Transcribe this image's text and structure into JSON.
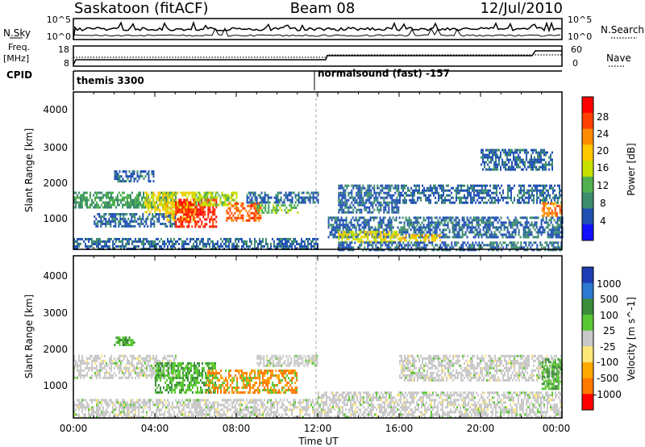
{
  "header": {
    "station": "Saskatoon (fitACF)",
    "beam": "Beam 08",
    "date": "12/Jul/2010"
  },
  "nsky_panel": {
    "left_label": "N.Sky",
    "right_label": "N.Search",
    "left_ticks": [
      "10^5",
      "10^0"
    ],
    "right_ticks": [
      "10^5",
      "10^0"
    ]
  },
  "freq_panel": {
    "left_label_1": "Freq.",
    "left_label_2": "[MHz]",
    "right_label": "Nave",
    "left_ticks": [
      "18",
      "8"
    ],
    "right_ticks": [
      "60",
      "0"
    ]
  },
  "cpid_panel": {
    "label": "CPID",
    "modes": [
      "themis 3300",
      "normalsound (fast) -157"
    ]
  },
  "chart_data": [
    {
      "type": "heatmap",
      "name": "power",
      "ylabel": "Slant Range [km]",
      "xlabel": "",
      "x_range_hours": [
        0,
        24
      ],
      "ylim": [
        180,
        4600
      ],
      "yticks": [
        "1000",
        "2000",
        "3000",
        "4000"
      ],
      "colorbar": {
        "label": "Power [dB]",
        "ticks": [
          "28",
          "24",
          "20",
          "16",
          "12",
          "8",
          "4"
        ],
        "colors": [
          "#ff0000",
          "#ff4000",
          "#ff8c00",
          "#ffc800",
          "#c8e000",
          "#50b050",
          "#3c8c6e",
          "#2050b4",
          "#1010ff"
        ]
      },
      "bands": [
        {
          "x0": 0.0,
          "x1": 5.0,
          "r0": 1350,
          "r1": 1800,
          "level": 12
        },
        {
          "x0": 1.0,
          "x1": 5.0,
          "r0": 800,
          "r1": 1200,
          "level": 8
        },
        {
          "x0": 3.5,
          "x1": 6.0,
          "r0": 1200,
          "r1": 1800,
          "level": 18
        },
        {
          "x0": 4.5,
          "x1": 6.0,
          "r0": 1000,
          "r1": 1500,
          "level": 20
        },
        {
          "x0": 5.0,
          "x1": 7.0,
          "r0": 800,
          "r1": 1600,
          "level": 28
        },
        {
          "x0": 6.0,
          "x1": 8.0,
          "r0": 1400,
          "r1": 1800,
          "level": 16
        },
        {
          "x0": 7.5,
          "x1": 9.2,
          "r0": 1000,
          "r1": 1500,
          "level": 26
        },
        {
          "x0": 9.0,
          "x1": 11.0,
          "r0": 1200,
          "r1": 1450,
          "level": 14
        },
        {
          "x0": 8.5,
          "x1": 12.0,
          "r0": 1500,
          "r1": 1800,
          "level": 8
        },
        {
          "x0": 2.0,
          "x1": 4.0,
          "r0": 2100,
          "r1": 2400,
          "level": 8
        },
        {
          "x0": 0.0,
          "x1": 12.0,
          "r0": 180,
          "r1": 500,
          "level": 8
        },
        {
          "x0": 12.5,
          "x1": 24.0,
          "r0": 500,
          "r1": 1100,
          "level": 8
        },
        {
          "x0": 13.0,
          "x1": 16.0,
          "r0": 400,
          "r1": 700,
          "level": 18
        },
        {
          "x0": 16.0,
          "x1": 18.0,
          "r0": 400,
          "r1": 600,
          "level": 20
        },
        {
          "x0": 13.0,
          "x1": 24.0,
          "r0": 180,
          "r1": 400,
          "level": 8
        },
        {
          "x0": 16.0,
          "x1": 24.0,
          "r0": 1500,
          "r1": 2000,
          "level": 8
        },
        {
          "x0": 20.0,
          "x1": 23.5,
          "r0": 2400,
          "r1": 3000,
          "level": 8
        },
        {
          "x0": 13.0,
          "x1": 16.0,
          "r0": 1200,
          "r1": 2000,
          "level": 8
        },
        {
          "x0": 23.0,
          "x1": 24.0,
          "r0": 1100,
          "r1": 1500,
          "level": 24
        }
      ]
    },
    {
      "type": "heatmap",
      "name": "velocity",
      "ylabel": "Slant Range [km]",
      "xlabel": "Time UT",
      "x_range_hours": [
        0,
        24
      ],
      "xticks": [
        "00:00",
        "04:00",
        "08:00",
        "12:00",
        "16:00",
        "20:00",
        "00:00"
      ],
      "ylim": [
        180,
        4600
      ],
      "yticks": [
        "1000",
        "2000",
        "3000",
        "4000"
      ],
      "colorbar": {
        "label": "Velocity [m s^-1]",
        "ticks": [
          "1000",
          "500",
          "100",
          "25",
          "-25",
          "-100",
          "-500",
          "-1000"
        ],
        "colors": [
          "#1e3cb4",
          "#2d7ad2",
          "#3c8c3c",
          "#5ac832",
          "#c8c8c8",
          "#ffe678",
          "#ffa800",
          "#ff7800",
          "#ff0000"
        ]
      },
      "bands": [
        {
          "x0": 0.0,
          "x1": 5.0,
          "r0": 1300,
          "r1": 1900,
          "level": 0
        },
        {
          "x0": 2.0,
          "x1": 3.0,
          "r0": 2200,
          "r1": 2400,
          "level": 150
        },
        {
          "x0": 4.0,
          "x1": 7.0,
          "r0": 900,
          "r1": 1700,
          "level": 150
        },
        {
          "x0": 6.5,
          "x1": 11.0,
          "r0": 900,
          "r1": 1500,
          "level": -300
        },
        {
          "x0": 9.0,
          "x1": 12.0,
          "r0": 1600,
          "r1": 1900,
          "level": 0
        },
        {
          "x0": 0.0,
          "x1": 12.0,
          "r0": 180,
          "r1": 700,
          "level": 0
        },
        {
          "x0": 12.0,
          "x1": 24.0,
          "r0": 180,
          "r1": 900,
          "level": 0
        },
        {
          "x0": 16.0,
          "x1": 24.0,
          "r0": 1200,
          "r1": 1900,
          "level": 0
        },
        {
          "x0": 23.0,
          "x1": 24.0,
          "r0": 1000,
          "r1": 1800,
          "level": 150
        }
      ]
    }
  ]
}
